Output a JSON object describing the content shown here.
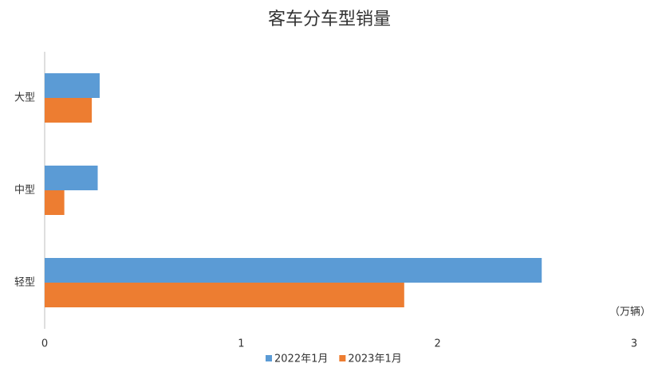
{
  "chart_data": {
    "type": "hbar",
    "title": "客车分车型销量",
    "categories": [
      "大型",
      "中型",
      "轻型"
    ],
    "series": [
      {
        "name": "2022年1月",
        "color": "#5b9bd5",
        "values": [
          0.28,
          0.27,
          2.53
        ]
      },
      {
        "name": "2023年1月",
        "color": "#ed7d31",
        "values": [
          0.24,
          0.1,
          1.83
        ]
      }
    ],
    "xlim": [
      0,
      3
    ],
    "xticks": [
      0,
      1,
      2,
      3
    ],
    "annotation": "（万辆）",
    "legend": "bottom",
    "grid": false
  }
}
